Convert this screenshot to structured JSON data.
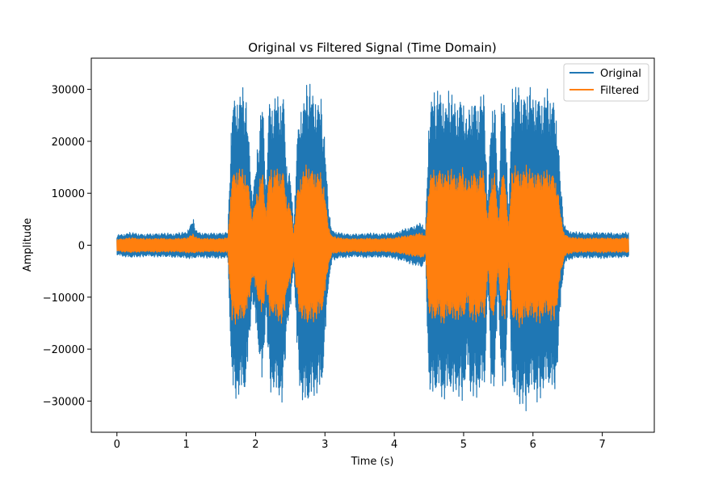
{
  "chart_data": {
    "type": "line",
    "title": "Original vs Filtered Signal (Time Domain)",
    "xlabel": "Time (s)",
    "ylabel": "Amplitude",
    "xlim": [
      -0.37,
      7.75
    ],
    "ylim": [
      -36000,
      36000
    ],
    "xticks": [
      0,
      1,
      2,
      3,
      4,
      5,
      6,
      7
    ],
    "xtick_labels": [
      "0",
      "1",
      "2",
      "3",
      "4",
      "5",
      "6",
      "7"
    ],
    "yticks": [
      -30000,
      -20000,
      -10000,
      0,
      10000,
      20000,
      30000
    ],
    "ytick_labels": [
      "−30000",
      "−20000",
      "−10000",
      "0",
      "10000",
      "20000",
      "30000"
    ],
    "grid": false,
    "legend_position": "top-right",
    "series": [
      {
        "name": "Original",
        "color": "#1f77b4",
        "x": [
          0,
          0.2,
          0.4,
          0.6,
          0.8,
          1.0,
          1.1,
          1.15,
          1.2,
          1.4,
          1.6,
          1.66,
          1.7,
          1.75,
          1.8,
          1.85,
          1.9,
          1.95,
          2.0,
          2.05,
          2.1,
          2.15,
          2.2,
          2.25,
          2.3,
          2.35,
          2.4,
          2.45,
          2.5,
          2.55,
          2.6,
          2.65,
          2.7,
          2.75,
          2.8,
          2.85,
          2.9,
          2.95,
          3.0,
          3.05,
          3.1,
          3.2,
          3.4,
          3.6,
          3.8,
          4.0,
          4.2,
          4.4,
          4.45,
          4.5,
          4.55,
          4.6,
          4.65,
          4.7,
          4.75,
          4.8,
          4.85,
          4.9,
          4.95,
          5.0,
          5.05,
          5.1,
          5.15,
          5.2,
          5.25,
          5.3,
          5.35,
          5.4,
          5.45,
          5.5,
          5.55,
          5.6,
          5.65,
          5.7,
          5.75,
          5.8,
          5.85,
          5.9,
          5.95,
          6.0,
          6.05,
          6.1,
          6.15,
          6.2,
          6.25,
          6.3,
          6.35,
          6.4,
          6.45,
          6.5,
          6.6,
          6.8,
          7.0,
          7.2,
          7.38
        ],
        "ymax": [
          2000,
          2500,
          2200,
          2400,
          2300,
          2600,
          5100,
          2800,
          2500,
          2400,
          2600,
          29000,
          30000,
          29500,
          31000,
          30000,
          22000,
          10000,
          15000,
          22000,
          30000,
          12000,
          30000,
          28000,
          30000,
          29000,
          31000,
          16000,
          14000,
          4000,
          22000,
          28000,
          29000,
          32000,
          31000,
          30000,
          29000,
          28000,
          20000,
          8000,
          3000,
          2500,
          2200,
          2400,
          2300,
          2500,
          3500,
          4500,
          3000,
          26000,
          30500,
          29000,
          31000,
          30000,
          28000,
          30500,
          29000,
          28000,
          30000,
          29500,
          24000,
          29000,
          30000,
          28000,
          30000,
          29500,
          8000,
          28000,
          29000,
          9000,
          30000,
          28000,
          6000,
          30000,
          31000,
          32000,
          30000,
          31000,
          32000,
          29000,
          31000,
          30000,
          29000,
          31000,
          30000,
          29500,
          25000,
          12000,
          4000,
          3000,
          2600,
          2500,
          2600,
          2400,
          2600
        ],
        "ymin": [
          -2000,
          -2500,
          -2200,
          -2300,
          -2400,
          -2600,
          -2700,
          -2500,
          -2400,
          -2600,
          -2500,
          -29000,
          -30500,
          -30000,
          -29500,
          -30000,
          -22000,
          -10000,
          -16000,
          -22000,
          -29000,
          -12000,
          -28000,
          -29000,
          -30000,
          -31000,
          -30000,
          -16000,
          -14000,
          -4000,
          -22000,
          -30000,
          -32000,
          -32500,
          -31000,
          -30000,
          -29000,
          -30000,
          -20000,
          -8000,
          -3000,
          -2600,
          -2300,
          -2500,
          -2400,
          -2600,
          -3500,
          -4500,
          -3000,
          -28000,
          -31000,
          -30000,
          -29000,
          -31000,
          -30000,
          -29000,
          -31000,
          -29000,
          -30000,
          -30000,
          -24000,
          -30000,
          -29000,
          -30000,
          -28000,
          -29500,
          -8000,
          -29000,
          -28000,
          -9000,
          -30000,
          -29000,
          -6000,
          -30000,
          -31000,
          -32500,
          -31000,
          -32000,
          -30000,
          -29000,
          -30500,
          -30000,
          -29000,
          -28000,
          -29000,
          -30000,
          -25000,
          -12000,
          -4000,
          -3000,
          -2600,
          -2500,
          -2600,
          -2500,
          -2400
        ]
      },
      {
        "name": "Filtered",
        "color": "#ff7f0e",
        "x": [
          0,
          0.2,
          0.4,
          0.6,
          0.8,
          1.0,
          1.1,
          1.15,
          1.2,
          1.4,
          1.6,
          1.66,
          1.7,
          1.75,
          1.8,
          1.85,
          1.9,
          1.95,
          2.0,
          2.05,
          2.1,
          2.15,
          2.2,
          2.25,
          2.3,
          2.35,
          2.4,
          2.45,
          2.5,
          2.55,
          2.6,
          2.65,
          2.7,
          2.75,
          2.8,
          2.85,
          2.9,
          2.95,
          3.0,
          3.05,
          3.1,
          3.2,
          3.4,
          3.6,
          3.8,
          4.0,
          4.2,
          4.4,
          4.45,
          4.5,
          4.55,
          4.6,
          4.65,
          4.7,
          4.75,
          4.8,
          4.85,
          4.9,
          4.95,
          5.0,
          5.05,
          5.1,
          5.15,
          5.2,
          5.25,
          5.3,
          5.35,
          5.4,
          5.45,
          5.5,
          5.55,
          5.6,
          5.65,
          5.7,
          5.75,
          5.8,
          5.85,
          5.9,
          5.95,
          6.0,
          6.05,
          6.1,
          6.15,
          6.2,
          6.25,
          6.3,
          6.35,
          6.4,
          6.45,
          6.5,
          6.6,
          6.8,
          7.0,
          7.2,
          7.38
        ],
        "ymax": [
          1200,
          1500,
          1300,
          1400,
          1300,
          1500,
          2200,
          1500,
          1400,
          1300,
          1500,
          14500,
          15000,
          15500,
          15000,
          14800,
          12000,
          6000,
          9000,
          12000,
          15000,
          7000,
          15000,
          14000,
          15500,
          15000,
          15000,
          9000,
          8000,
          2500,
          11000,
          14000,
          15000,
          16500,
          15500,
          15000,
          14500,
          14000,
          10000,
          4000,
          1800,
          1500,
          1300,
          1400,
          1300,
          1500,
          2000,
          2500,
          1800,
          13000,
          15000,
          14500,
          15500,
          15000,
          14000,
          15000,
          14500,
          14000,
          15000,
          15000,
          12000,
          14500,
          15000,
          14000,
          15000,
          14800,
          5000,
          14000,
          14500,
          5000,
          15000,
          14000,
          3500,
          15000,
          15500,
          15000,
          15000,
          15500,
          15000,
          14500,
          15000,
          15000,
          14500,
          15000,
          14800,
          14500,
          12000,
          6000,
          2500,
          1800,
          1500,
          1400,
          1500,
          1400,
          1500
        ],
        "ymin": [
          -1200,
          -1500,
          -1300,
          -1400,
          -1300,
          -1500,
          -1600,
          -1500,
          -1400,
          -1300,
          -1500,
          -14500,
          -15500,
          -15000,
          -15500,
          -14800,
          -12000,
          -6000,
          -9000,
          -12000,
          -15000,
          -7000,
          -15000,
          -14000,
          -15000,
          -15500,
          -15000,
          -9000,
          -8000,
          -2500,
          -11000,
          -14500,
          -15500,
          -16000,
          -15500,
          -15000,
          -14500,
          -14000,
          -10000,
          -4000,
          -1800,
          -1500,
          -1300,
          -1400,
          -1300,
          -1500,
          -2000,
          -2500,
          -1800,
          -13500,
          -15500,
          -15000,
          -14500,
          -16000,
          -15000,
          -14500,
          -15500,
          -14500,
          -15000,
          -15000,
          -12000,
          -15000,
          -14500,
          -15000,
          -14000,
          -14800,
          -5000,
          -14500,
          -14000,
          -5000,
          -15000,
          -14500,
          -3500,
          -15000,
          -15500,
          -16500,
          -15500,
          -15000,
          -15000,
          -14500,
          -15000,
          -15000,
          -14500,
          -14000,
          -14500,
          -15000,
          -12000,
          -6000,
          -2500,
          -1800,
          -1500,
          -1400,
          -1500,
          -1400,
          -1500
        ]
      }
    ]
  }
}
